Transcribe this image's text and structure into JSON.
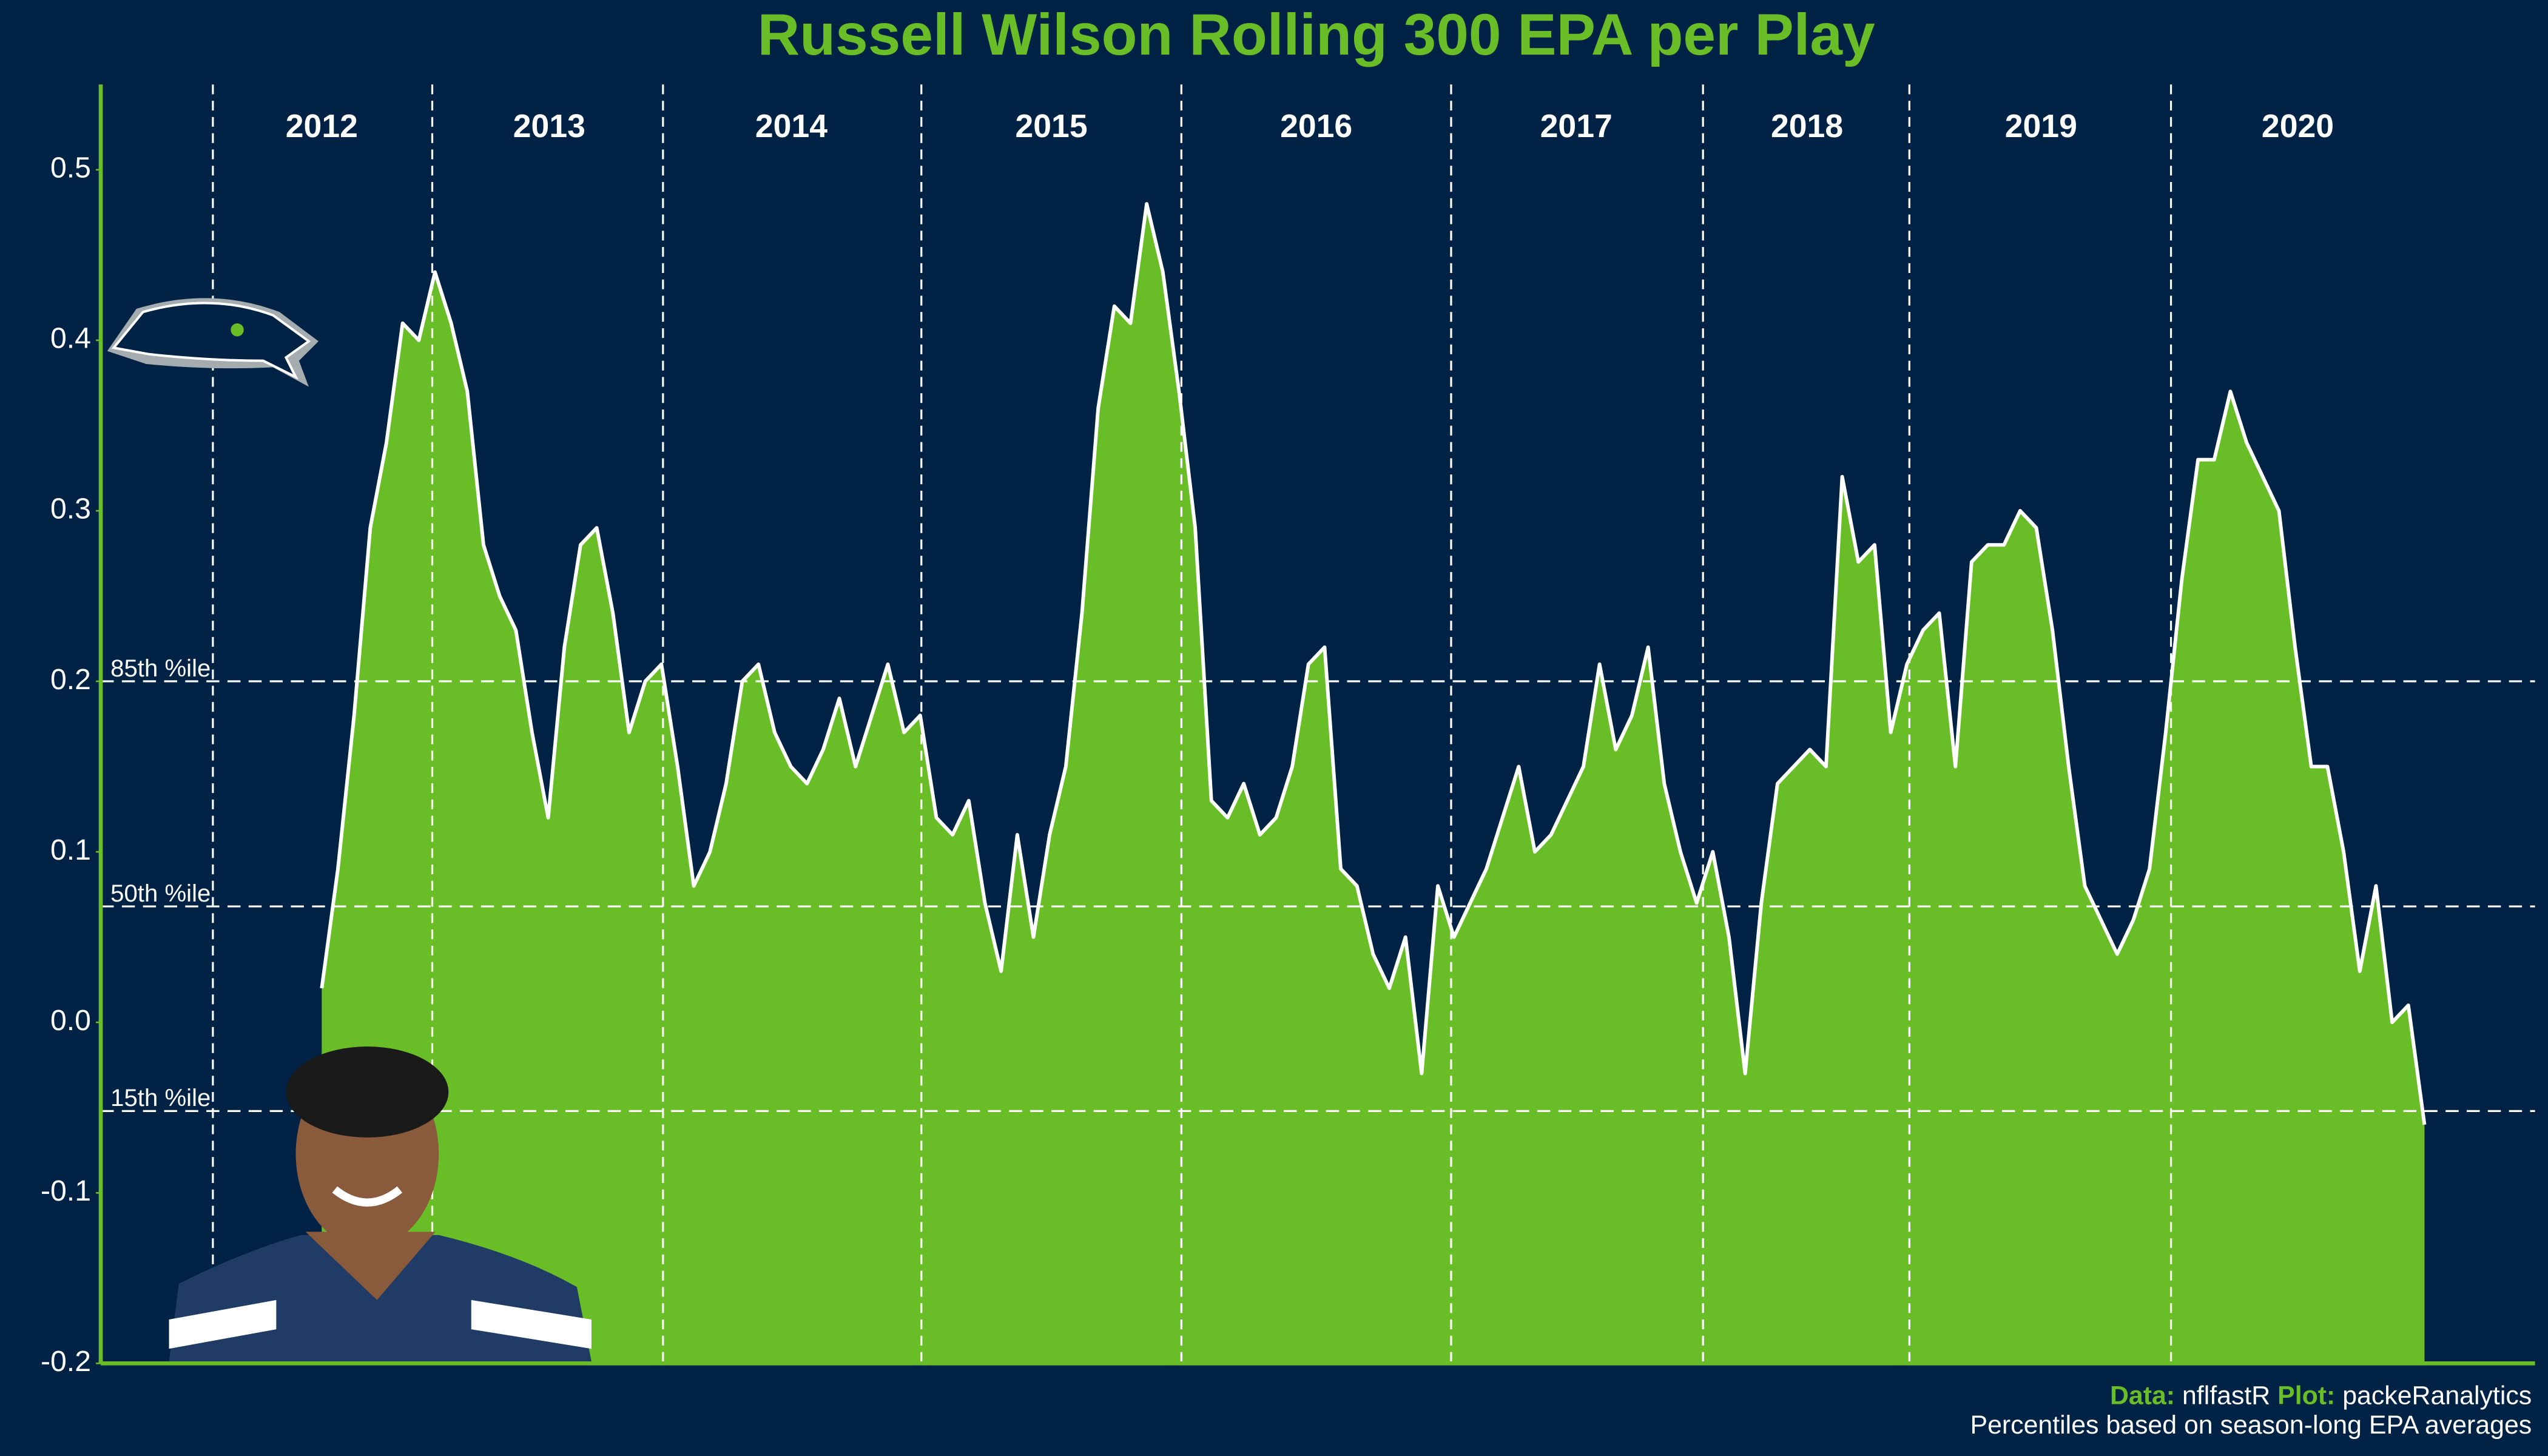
{
  "chart_data": {
    "type": "area",
    "title": "Russell Wilson Rolling 300 EPA per Play",
    "color": "#69be28",
    "line_color": "#ffffff",
    "values": [
      0.02,
      0.09,
      0.18,
      0.29,
      0.34,
      0.41,
      0.4,
      0.44,
      0.41,
      0.37,
      0.28,
      0.25,
      0.23,
      0.17,
      0.12,
      0.22,
      0.28,
      0.29,
      0.24,
      0.17,
      0.2,
      0.21,
      0.15,
      0.08,
      0.1,
      0.14,
      0.2,
      0.21,
      0.17,
      0.15,
      0.14,
      0.16,
      0.19,
      0.15,
      0.18,
      0.21,
      0.17,
      0.18,
      0.12,
      0.11,
      0.13,
      0.07,
      0.03,
      0.11,
      0.05,
      0.11,
      0.15,
      0.24,
      0.36,
      0.42,
      0.41,
      0.48,
      0.44,
      0.37,
      0.29,
      0.13,
      0.12,
      0.14,
      0.11,
      0.12,
      0.15,
      0.21,
      0.22,
      0.09,
      0.08,
      0.04,
      0.02,
      0.05,
      -0.03,
      0.08,
      0.05,
      0.07,
      0.09,
      0.12,
      0.15,
      0.1,
      0.11,
      0.13,
      0.15,
      0.21,
      0.16,
      0.18,
      0.22,
      0.14,
      0.1,
      0.07,
      0.1,
      0.05,
      -0.03,
      0.07,
      0.14,
      0.15,
      0.16,
      0.15,
      0.32,
      0.27,
      0.28,
      0.17,
      0.21,
      0.23,
      0.24,
      0.15,
      0.27,
      0.28,
      0.28,
      0.3,
      0.29,
      0.23,
      0.15,
      0.08,
      0.06,
      0.04,
      0.06,
      0.09,
      0.17,
      0.26,
      0.33,
      0.33,
      0.37,
      0.34,
      0.32,
      0.3,
      0.22,
      0.15,
      0.15,
      0.1,
      0.03,
      0.08,
      0.0,
      0.01,
      -0.06
    ],
    "ylim": [
      -0.2,
      0.55
    ],
    "yticks": [
      -0.2,
      -0.1,
      {
        "value": 0,
        "label": "0.0"
      },
      0.1,
      0.2,
      0.3,
      0.4,
      0.5
    ],
    "seasons": [
      "2012",
      "2013",
      "2014",
      "2015",
      "2016",
      "2017",
      "2018",
      "2019",
      "2020"
    ],
    "reference_lines": [
      {
        "label": "85th %ile",
        "value": 0.2
      },
      {
        "label": "50th %ile",
        "value": 0.068
      },
      {
        "label": "15th %ile",
        "value": -0.052
      }
    ],
    "caption": {
      "data_label": "Data:",
      "data_source": "nflfastR",
      "plot_label": "Plot:",
      "plot_author": "packeRanalytics",
      "note": "Percentiles based on season-long EPA averages"
    }
  }
}
